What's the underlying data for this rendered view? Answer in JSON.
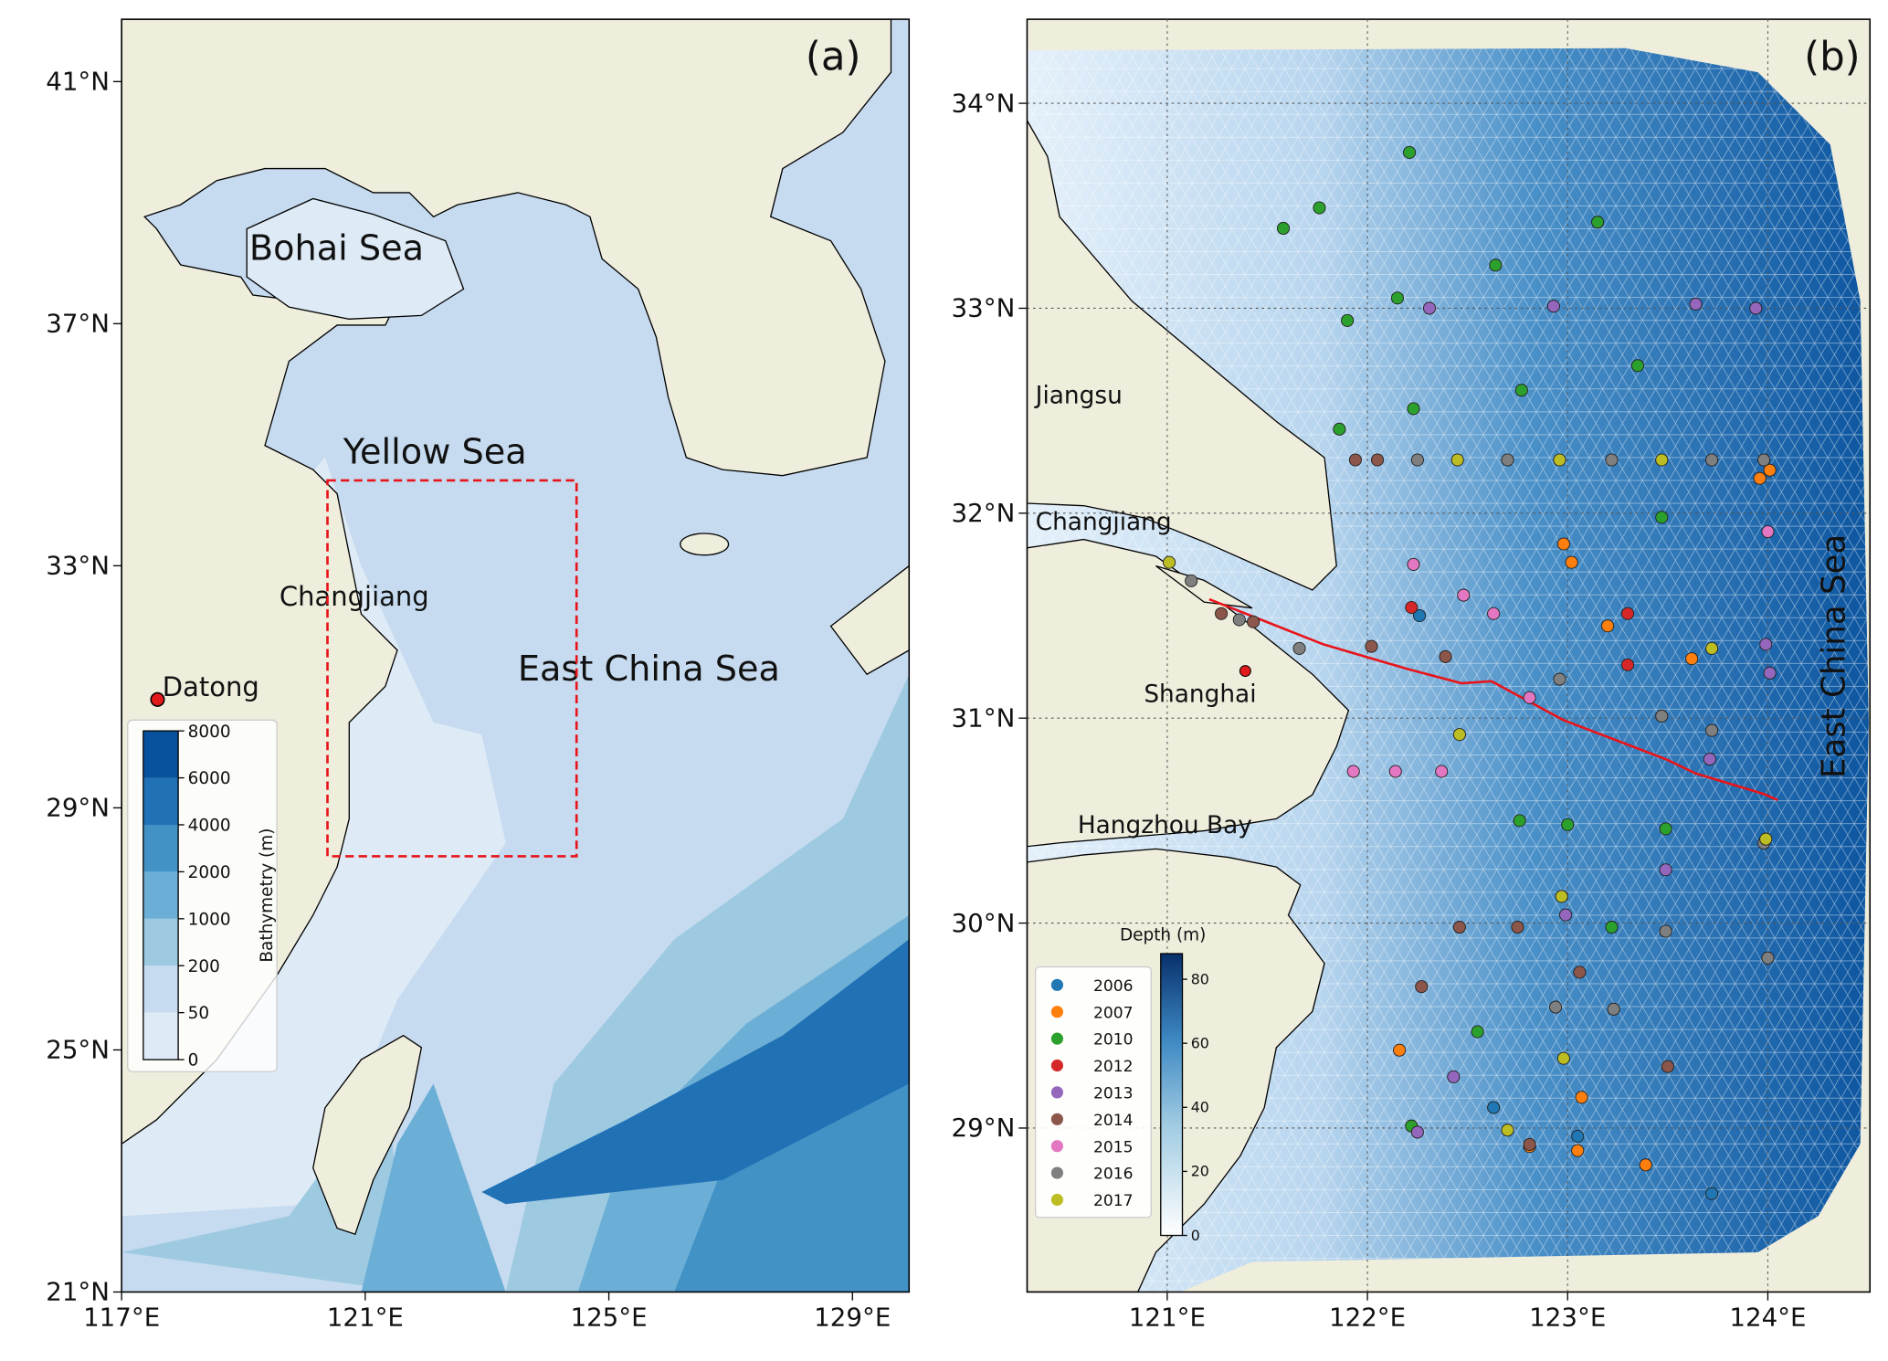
{
  "panel_a": {
    "label": "(a)",
    "xlim": [
      117,
      129.93
    ],
    "ylim": [
      21,
      42.03
    ],
    "xticks": [
      {
        "value": 117,
        "label": "117°E"
      },
      {
        "value": 121,
        "label": "121°E"
      },
      {
        "value": 125,
        "label": "125°E"
      },
      {
        "value": 129,
        "label": "129°E"
      }
    ],
    "yticks": [
      {
        "value": 21,
        "label": "21°N"
      },
      {
        "value": 25,
        "label": "25°N"
      },
      {
        "value": 29,
        "label": "29°N"
      },
      {
        "value": 33,
        "label": "33°N"
      },
      {
        "value": 37,
        "label": "37°N"
      },
      {
        "value": 41,
        "label": "41°N"
      }
    ],
    "seas": [
      "Bohai Sea",
      "Yellow Sea",
      "East China Sea"
    ],
    "river": "Changjiang",
    "station": {
      "name": "Datong",
      "lon": 117.59,
      "lat": 30.79
    },
    "study_box": {
      "lon": [
        120.38,
        124.47
      ],
      "lat": [
        28.2,
        34.41
      ]
    },
    "colorbar": {
      "title": "Bathymetry (m)",
      "ticks": [
        0,
        50,
        200,
        1000,
        2000,
        4000,
        6000,
        8000
      ],
      "colors": [
        "#f7fbff",
        "#deebf7",
        "#c6dbef",
        "#9ecae1",
        "#6baed6",
        "#4292c6",
        "#2171b5",
        "#08519c"
      ]
    }
  },
  "panel_b": {
    "label": "(b)",
    "xlim": [
      120.3,
      124.51
    ],
    "ylim": [
      28.2,
      34.41
    ],
    "xticks": [
      {
        "value": 121,
        "label": "121°E"
      },
      {
        "value": 122,
        "label": "122°E"
      },
      {
        "value": 123,
        "label": "123°E"
      },
      {
        "value": 124,
        "label": "124°E"
      }
    ],
    "yticks": [
      {
        "value": 29,
        "label": "29°N"
      },
      {
        "value": 30,
        "label": "30°N"
      },
      {
        "value": 31,
        "label": "31°N"
      },
      {
        "value": 32,
        "label": "32°N"
      },
      {
        "value": 33,
        "label": "33°N"
      },
      {
        "value": 34,
        "label": "34°N"
      }
    ],
    "grid": true,
    "places": [
      "Jiangsu",
      "Changjiang",
      "Shanghai",
      "Hangzhou Bay",
      "East China Sea"
    ],
    "shanghai": {
      "lon": 121.39,
      "lat": 31.23
    },
    "transect": {
      "lon": [
        121.21,
        121.78,
        122.2,
        122.47,
        122.62,
        122.98,
        123.49,
        123.64,
        123.98,
        124.05
      ],
      "lat": [
        31.58,
        31.36,
        31.24,
        31.17,
        31.18,
        30.99,
        30.8,
        30.73,
        30.63,
        30.6
      ]
    },
    "colorbar": {
      "title": "Depth (m)",
      "lim": [
        0,
        88
      ],
      "ticks": [
        0,
        20,
        40,
        60,
        80
      ]
    },
    "series": [
      {
        "name": "2006",
        "color": "#1f77b4",
        "lon": [
          122.26,
          122.63,
          123.72,
          123.05
        ],
        "lat": [
          31.5,
          29.1,
          28.68,
          28.96
        ]
      },
      {
        "name": "2007",
        "color": "#ff7f0e",
        "lon": [
          123.96,
          124.01,
          122.98,
          123.02,
          123.2,
          123.62,
          123.07,
          123.39,
          122.16,
          122.81,
          123.05
        ],
        "lat": [
          32.17,
          32.21,
          31.85,
          31.76,
          31.45,
          31.29,
          29.15,
          28.82,
          29.38,
          28.91,
          28.89
        ]
      },
      {
        "name": "2010",
        "color": "#2ca02c",
        "lon": [
          122.21,
          121.58,
          121.76,
          122.64,
          123.15,
          121.9,
          122.15,
          122.77,
          123.35,
          121.86,
          122.23,
          123.0,
          122.76,
          123.49,
          123.22,
          122.55,
          122.22,
          123.47
        ],
        "lat": [
          33.76,
          33.39,
          33.49,
          33.21,
          33.42,
          32.94,
          33.05,
          32.6,
          32.72,
          32.41,
          32.51,
          30.48,
          30.5,
          30.46,
          29.98,
          29.47,
          29.01,
          31.98
        ]
      },
      {
        "name": "2012",
        "color": "#d62728",
        "lon": [
          123.3,
          123.3,
          122.22
        ],
        "lat": [
          31.51,
          31.26,
          31.54
        ]
      },
      {
        "name": "2013",
        "color": "#9467bd",
        "lon": [
          122.31,
          122.93,
          123.64,
          123.94,
          123.99,
          124.01,
          123.49,
          122.99,
          122.43,
          122.25,
          123.71
        ],
        "lat": [
          33.0,
          33.01,
          33.02,
          33.0,
          31.36,
          31.22,
          30.26,
          30.04,
          29.25,
          28.98,
          30.8
        ]
      },
      {
        "name": "2014",
        "color": "#8c564b",
        "lon": [
          121.94,
          122.05,
          121.27,
          121.43,
          122.02,
          122.39,
          122.46,
          122.75,
          122.27,
          123.06,
          123.5,
          122.81
        ],
        "lat": [
          32.26,
          32.26,
          31.51,
          31.47,
          31.35,
          31.3,
          29.98,
          29.98,
          29.69,
          29.76,
          29.3,
          28.92
        ]
      },
      {
        "name": "2015",
        "color": "#e377c2",
        "lon": [
          121.93,
          122.14,
          122.37,
          122.63,
          122.48,
          122.81,
          122.23,
          124.0
        ],
        "lat": [
          30.74,
          30.74,
          30.74,
          31.51,
          31.6,
          31.1,
          31.75,
          31.91
        ]
      },
      {
        "name": "2016",
        "color": "#7f7f7f",
        "lon": [
          122.25,
          122.7,
          123.22,
          123.72,
          123.98,
          121.12,
          121.36,
          121.66,
          122.96,
          123.47,
          123.72,
          123.98,
          124.0,
          123.49,
          123.23,
          122.94
        ],
        "lat": [
          32.26,
          32.26,
          32.26,
          32.26,
          32.26,
          31.67,
          31.48,
          31.34,
          31.19,
          31.01,
          30.94,
          30.39,
          29.83,
          29.96,
          29.58,
          29.59
        ]
      },
      {
        "name": "2017",
        "color": "#bcbd22",
        "lon": [
          122.45,
          122.96,
          123.47,
          121.01,
          122.46,
          122.97,
          122.7,
          123.99,
          123.72,
          122.98
        ],
        "lat": [
          32.26,
          32.26,
          32.26,
          31.76,
          30.92,
          30.13,
          28.99,
          30.41,
          31.34,
          29.34
        ]
      }
    ]
  }
}
